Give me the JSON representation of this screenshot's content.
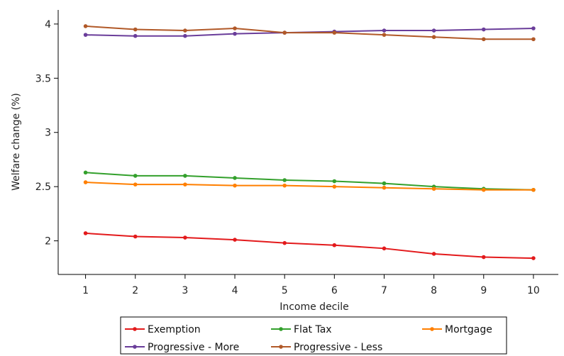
{
  "chart_data": {
    "type": "line",
    "xlabel": "Income decile",
    "ylabel": "Welfare change (%)",
    "x": [
      1,
      2,
      3,
      4,
      5,
      6,
      7,
      8,
      9,
      10
    ],
    "xlim": [
      0.45,
      10.5
    ],
    "ylim": [
      1.69,
      4.13
    ],
    "yticks": [
      2,
      2.5,
      3,
      3.5,
      4
    ],
    "ytick_labels": [
      "2",
      "2.5",
      "3",
      "3.5",
      "4"
    ],
    "grid": false,
    "legend_placement": "bottom-center",
    "series": [
      {
        "name": "Exemption",
        "color": "#e31a1c",
        "values": [
          2.07,
          2.04,
          2.03,
          2.01,
          1.98,
          1.96,
          1.93,
          1.88,
          1.85,
          1.84
        ]
      },
      {
        "name": "Flat Tax",
        "color": "#33a02c",
        "values": [
          2.63,
          2.6,
          2.6,
          2.58,
          2.56,
          2.55,
          2.53,
          2.5,
          2.48,
          2.47
        ]
      },
      {
        "name": "Mortgage",
        "color": "#ff7f00",
        "values": [
          2.54,
          2.52,
          2.52,
          2.51,
          2.51,
          2.5,
          2.49,
          2.48,
          2.47,
          2.47
        ]
      },
      {
        "name": "Progressive - More",
        "color": "#6a3d9a",
        "values": [
          3.9,
          3.89,
          3.89,
          3.91,
          3.92,
          3.93,
          3.94,
          3.94,
          3.95,
          3.96
        ]
      },
      {
        "name": "Progressive - Less",
        "color": "#b15928",
        "values": [
          3.98,
          3.95,
          3.94,
          3.96,
          3.92,
          3.92,
          3.9,
          3.88,
          3.86,
          3.86
        ]
      }
    ]
  }
}
